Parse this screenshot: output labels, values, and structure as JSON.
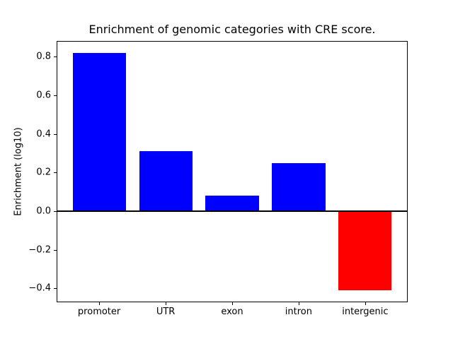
{
  "window": {
    "background": "#ffffff"
  },
  "chart_data": {
    "type": "bar",
    "title": "Enrichment of genomic categories with CRE score.",
    "xlabel": "",
    "ylabel": "Enrichment (log10)",
    "categories": [
      "promoter",
      "UTR",
      "exon",
      "intron",
      "intergenic"
    ],
    "values": [
      0.82,
      0.31,
      0.08,
      0.25,
      -0.41
    ],
    "bar_colors": [
      "#0000ff",
      "#0000ff",
      "#0000ff",
      "#0000ff",
      "#ff0000"
    ],
    "positive_color": "#0000ff",
    "negative_color": "#ff0000",
    "ylim": [
      -0.4715,
      0.8815
    ],
    "xlim": [
      -0.64,
      4.64
    ],
    "bar_width": 0.8,
    "yticks": [
      0.8,
      0.6,
      0.4,
      0.2,
      0.0,
      -0.2,
      -0.4
    ],
    "ytick_labels": [
      "0.8",
      "0.6",
      "0.4",
      "0.2",
      "0.0",
      "−0.2",
      "−0.4"
    ],
    "zero_line": true,
    "grid": false,
    "legend": false,
    "axis_color": "#000000",
    "text_color": "#000000"
  }
}
